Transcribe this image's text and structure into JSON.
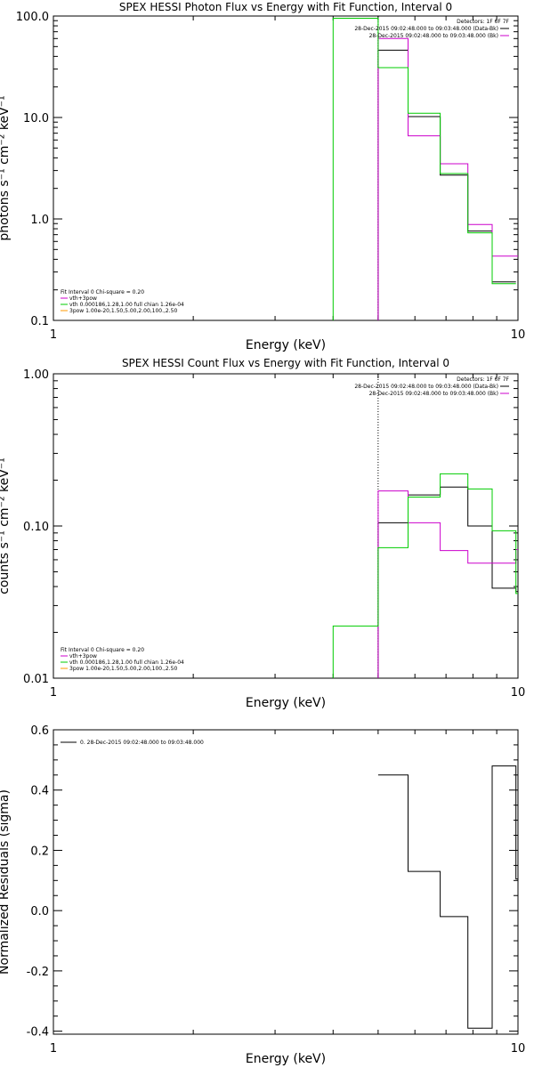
{
  "chart_data": [
    {
      "type": "line",
      "title": "SPEX HESSI Photon Flux vs Energy with Fit Function, Interval 0",
      "xlabel": "Energy (keV)",
      "ylabel": "photons s⁻¹ cm⁻² keV⁻¹",
      "xscale": "log",
      "yscale": "log",
      "xlim": [
        1,
        10
      ],
      "ylim": [
        0.1,
        100
      ],
      "xticks": [
        "1",
        "10"
      ],
      "yticks": [
        {
          "value": 0.1,
          "label": "0.1"
        },
        {
          "value": 1,
          "label": "1.0"
        },
        {
          "value": 10,
          "label": "10.0"
        },
        {
          "value": 100,
          "label": "100.0"
        }
      ],
      "info": [
        "Detectors: 1F 6F 7F",
        "28-Dec-2015 09:02:48.000 to 09:03:48.000 (Data-Bk)",
        "28-Dec-2015 09:02:48.000 to 09:03:48.000 (Bk)"
      ],
      "legend": [
        "Fit Interval 0   Chi-square = 0.20",
        "vth+3pow",
        "vth 0.000186,1.28,1.00  full chian 1.26e-04",
        "3pow 1.00e-20,1.50,5.00,2.00,100.,2.50"
      ],
      "vline": 5.0,
      "series": [
        {
          "name": "Data-Bk",
          "color": "#000000",
          "steps": [
            [
              5.0,
              5.8,
              46
            ],
            [
              5.8,
              6.8,
              10.2
            ],
            [
              6.8,
              7.8,
              2.7
            ],
            [
              7.8,
              8.8,
              0.76
            ],
            [
              8.8,
              9.9,
              0.24
            ]
          ]
        },
        {
          "name": "Bk",
          "color": "#cc00cc",
          "steps": [
            [
              5.0,
              5.8,
              60
            ],
            [
              5.8,
              6.8,
              6.6
            ],
            [
              6.8,
              7.8,
              3.5
            ],
            [
              7.8,
              8.8,
              0.88
            ],
            [
              8.8,
              9.9,
              0.43
            ],
            [
              9.9,
              10,
              0.43
            ]
          ]
        },
        {
          "name": "vth+3pow",
          "color": "#00cc00",
          "steps": [
            [
              4.0,
              5.0,
              95
            ],
            [
              5.0,
              5.8,
              31
            ],
            [
              5.8,
              6.8,
              11
            ],
            [
              6.8,
              7.8,
              2.8
            ],
            [
              7.8,
              8.8,
              0.73
            ],
            [
              8.8,
              9.9,
              0.23
            ]
          ]
        }
      ]
    },
    {
      "type": "line",
      "title": "SPEX HESSI Count Flux vs Energy with Fit Function, Interval 0",
      "xlabel": "Energy (keV)",
      "ylabel": "counts s⁻¹ cm⁻² keV⁻¹",
      "xscale": "log",
      "yscale": "log",
      "xlim": [
        1,
        10
      ],
      "ylim": [
        0.01,
        1
      ],
      "xticks": [
        "1",
        "10"
      ],
      "yticks": [
        {
          "value": 0.01,
          "label": "0.01"
        },
        {
          "value": 0.1,
          "label": "0.10"
        },
        {
          "value": 1,
          "label": "1.00"
        }
      ],
      "info": [
        "Detectors: 1F 6F 7F",
        "28-Dec-2015 09:02:48.000 to 09:03:48.000 (Data-Bk)",
        "28-Dec-2015 09:02:48.000 to 09:03:48.000 (Bk)"
      ],
      "legend": [
        "Fit Interval 0   Chi-square = 0.20",
        "vth+3pow",
        "vth 0.000186,1.28,1.00  full chian 1.26e-04",
        "3pow 1.00e-20,1.50,5.00,2.00,100.,2.50"
      ],
      "vline": 5.0,
      "series": [
        {
          "name": "Data-Bk",
          "color": "#000000",
          "steps": [
            [
              5.0,
              5.8,
              0.105
            ],
            [
              5.8,
              6.8,
              0.16
            ],
            [
              6.8,
              7.8,
              0.18
            ],
            [
              7.8,
              8.8,
              0.1
            ],
            [
              8.8,
              9.9,
              0.039
            ],
            [
              9.9,
              10,
              0.037
            ]
          ]
        },
        {
          "name": "Bk",
          "color": "#cc00cc",
          "steps": [
            [
              5.0,
              5.8,
              0.17
            ],
            [
              5.8,
              6.8,
              0.105
            ],
            [
              6.8,
              7.8,
              0.069
            ],
            [
              7.8,
              8.8,
              0.057
            ],
            [
              8.8,
              9.9,
              0.057
            ],
            [
              9.9,
              10,
              0.07
            ]
          ]
        },
        {
          "name": "vth+3pow",
          "color": "#00cc00",
          "steps": [
            [
              4.0,
              5.0,
              0.022
            ],
            [
              5.0,
              5.8,
              0.072
            ],
            [
              5.8,
              6.8,
              0.155
            ],
            [
              6.8,
              7.8,
              0.22
            ],
            [
              7.8,
              8.8,
              0.175
            ],
            [
              8.8,
              9.9,
              0.093
            ],
            [
              9.9,
              10,
              0.036
            ]
          ]
        }
      ]
    },
    {
      "type": "line",
      "title": "",
      "xlabel": "Energy (keV)",
      "ylabel": "Normalized Residuals (sigma)",
      "xscale": "log",
      "yscale": "linear",
      "xlim": [
        1,
        10
      ],
      "ylim": [
        -0.41,
        0.6
      ],
      "xticks": [
        "1",
        "10"
      ],
      "yticks": [
        {
          "value": -0.4,
          "label": "-0.4"
        },
        {
          "value": -0.2,
          "label": "-0.2"
        },
        {
          "value": 0.0,
          "label": "0.0"
        },
        {
          "value": 0.2,
          "label": "0.2"
        },
        {
          "value": 0.4,
          "label": "0.4"
        },
        {
          "value": 0.6,
          "label": "0.6"
        }
      ],
      "legend": [
        "0. 28-Dec-2015 09:02:48.000 to 09:03:48.000"
      ],
      "series": [
        {
          "name": "0. 28-Dec-2015 09:02:48.000 to 09:03:48.000",
          "color": "#000000",
          "steps": [
            [
              5.0,
              5.8,
              0.45
            ],
            [
              5.8,
              6.8,
              0.13
            ],
            [
              6.8,
              7.8,
              -0.02
            ],
            [
              7.8,
              8.8,
              -0.39
            ],
            [
              8.8,
              9.9,
              0.48
            ],
            [
              9.9,
              10,
              0.105
            ]
          ]
        }
      ]
    }
  ]
}
